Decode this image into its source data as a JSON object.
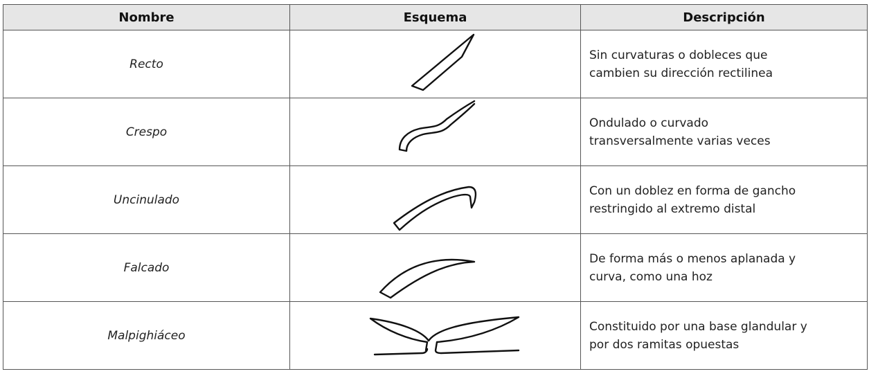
{
  "table": {
    "header": [
      "Nombre",
      "Esquema",
      "Descripción"
    ],
    "rows": [
      {
        "name": "Recto",
        "description": [
          "Sin curvaturas o dobleces que",
          "cambien su dirección rectilinea"
        ]
      },
      {
        "name": "Crespo",
        "description": [
          "Ondulado  o curvado",
          "transversalmente varias veces"
        ]
      },
      {
        "name": "Uncinulado",
        "description": [
          "Con un doblez en forma de gancho",
          "restringido al extremo distal"
        ]
      },
      {
        "name": "Falcado",
        "description": [
          "De forma más o menos aplanada y",
          "curva, como una hoz"
        ]
      },
      {
        "name": "Malpighiáceo",
        "description": [
          "Constituido por una base glandular y",
          "por dos ramitas opuestas"
        ]
      }
    ]
  }
}
